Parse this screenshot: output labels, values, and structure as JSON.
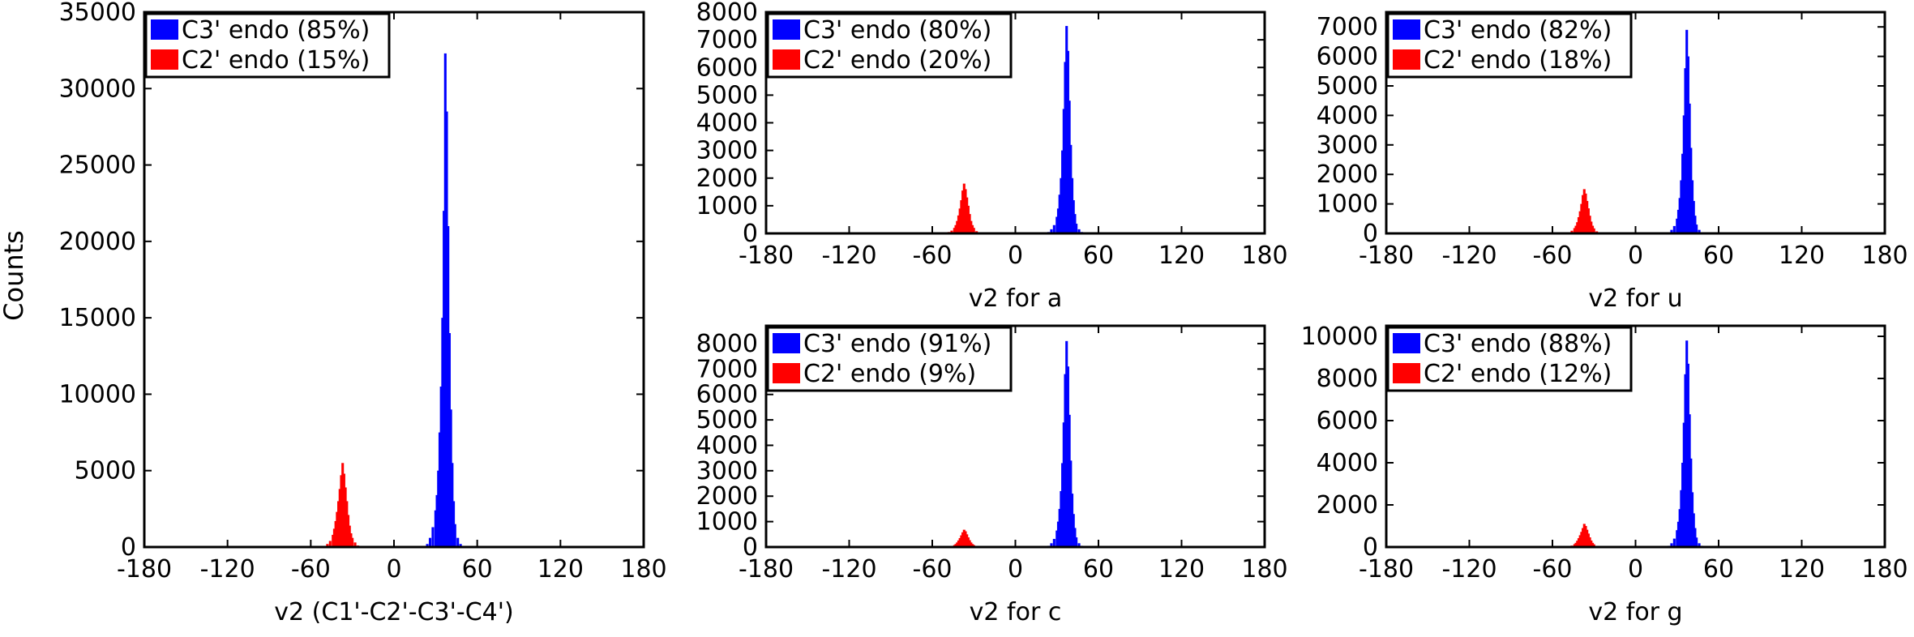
{
  "figure": {
    "ylabel_main": "Counts"
  },
  "chart_data": [
    {
      "type": "histogram",
      "xlabel": "v2 (C1'-C2'-C3'-C4')",
      "xlim": [
        -180,
        180
      ],
      "xticks": [
        -180,
        -120,
        -60,
        0,
        60,
        120,
        180
      ],
      "ylim": [
        0,
        35000
      ],
      "yticks": [
        0,
        5000,
        10000,
        15000,
        20000,
        25000,
        30000,
        35000
      ],
      "legend_position": "top-left",
      "series": [
        {
          "name": "C3' endo (85%)",
          "color": "#0000ff",
          "x": [
            24,
            26,
            28,
            30,
            31,
            32,
            33,
            34,
            35,
            36,
            37,
            38,
            39,
            40,
            41,
            42,
            43,
            44,
            46,
            48
          ],
          "y": [
            200,
            600,
            1300,
            2400,
            3400,
            5000,
            7500,
            10500,
            15000,
            22000,
            32300,
            28500,
            21000,
            14000,
            9000,
            5500,
            3000,
            1500,
            600,
            200
          ]
        },
        {
          "name": "C2' endo (15%)",
          "color": "#ff0000",
          "x": [
            -48,
            -46,
            -44,
            -43,
            -42,
            -41,
            -40,
            -39,
            -38,
            -37,
            -36,
            -35,
            -34,
            -33,
            -32,
            -31,
            -30,
            -28,
            -26
          ],
          "y": [
            200,
            400,
            800,
            1200,
            1700,
            2300,
            3000,
            3800,
            4700,
            5500,
            4800,
            3900,
            3000,
            2100,
            1400,
            900,
            600,
            300,
            100
          ]
        }
      ]
    },
    {
      "type": "histogram",
      "xlabel": "v2 for a",
      "xlim": [
        -180,
        180
      ],
      "xticks": [
        -180,
        -120,
        -60,
        0,
        60,
        120,
        180
      ],
      "ylim": [
        0,
        8000
      ],
      "yticks": [
        0,
        1000,
        2000,
        3000,
        4000,
        5000,
        6000,
        7000,
        8000
      ],
      "legend_position": "top-left",
      "series": [
        {
          "name": "C3' endo (80%)",
          "color": "#0000ff",
          "x": [
            24,
            26,
            28,
            30,
            31,
            32,
            33,
            34,
            35,
            36,
            37,
            38,
            39,
            40,
            41,
            42,
            43,
            44,
            46,
            48
          ],
          "y": [
            50,
            150,
            300,
            600,
            900,
            1400,
            2000,
            3000,
            4500,
            6200,
            7500,
            6600,
            4800,
            3200,
            2000,
            1200,
            700,
            350,
            150,
            50
          ]
        },
        {
          "name": "C2' endo (20%)",
          "color": "#ff0000",
          "x": [
            -48,
            -46,
            -44,
            -43,
            -42,
            -41,
            -40,
            -39,
            -38,
            -37,
            -36,
            -35,
            -34,
            -33,
            -32,
            -31,
            -30,
            -28,
            -26
          ],
          "y": [
            50,
            100,
            200,
            300,
            450,
            650,
            900,
            1200,
            1550,
            1800,
            1600,
            1300,
            1000,
            700,
            450,
            300,
            200,
            80,
            30
          ]
        }
      ]
    },
    {
      "type": "histogram",
      "xlabel": "v2 for u",
      "xlim": [
        -180,
        180
      ],
      "xticks": [
        -180,
        -120,
        -60,
        0,
        60,
        120,
        180
      ],
      "ylim": [
        0,
        7500
      ],
      "yticks": [
        0,
        1000,
        2000,
        3000,
        4000,
        5000,
        6000,
        7000
      ],
      "legend_position": "top-left",
      "series": [
        {
          "name": "C3' endo (82%)",
          "color": "#0000ff",
          "x": [
            24,
            26,
            28,
            30,
            31,
            32,
            33,
            34,
            35,
            36,
            37,
            38,
            39,
            40,
            41,
            42,
            43,
            44,
            46,
            48
          ],
          "y": [
            40,
            120,
            250,
            500,
            800,
            1200,
            1800,
            2700,
            4000,
            5600,
            6900,
            6000,
            4400,
            2900,
            1800,
            1100,
            600,
            300,
            120,
            40
          ]
        },
        {
          "name": "C2' endo (18%)",
          "color": "#ff0000",
          "x": [
            -48,
            -46,
            -44,
            -43,
            -42,
            -41,
            -40,
            -39,
            -38,
            -37,
            -36,
            -35,
            -34,
            -33,
            -32,
            -31,
            -30,
            -28,
            -26
          ],
          "y": [
            40,
            90,
            180,
            260,
            380,
            550,
            750,
            1000,
            1300,
            1500,
            1350,
            1100,
            850,
            600,
            400,
            260,
            170,
            70,
            30
          ]
        }
      ]
    },
    {
      "type": "histogram",
      "xlabel": "v2 for c",
      "xlim": [
        -180,
        180
      ],
      "xticks": [
        -180,
        -120,
        -60,
        0,
        60,
        120,
        180
      ],
      "ylim": [
        0,
        8700
      ],
      "yticks": [
        0,
        1000,
        2000,
        3000,
        4000,
        5000,
        6000,
        7000,
        8000
      ],
      "legend_position": "top-left",
      "series": [
        {
          "name": "C3' endo (91%)",
          "color": "#0000ff",
          "x": [
            24,
            26,
            28,
            30,
            31,
            32,
            33,
            34,
            35,
            36,
            37,
            38,
            39,
            40,
            41,
            42,
            43,
            44,
            46,
            48
          ],
          "y": [
            50,
            150,
            320,
            650,
            1000,
            1500,
            2200,
            3300,
            4900,
            6800,
            8100,
            7100,
            5200,
            3400,
            2100,
            1300,
            750,
            380,
            150,
            50
          ]
        },
        {
          "name": "C2' endo (9%)",
          "color": "#ff0000",
          "x": [
            -48,
            -46,
            -44,
            -43,
            -42,
            -41,
            -40,
            -39,
            -38,
            -37,
            -36,
            -35,
            -34,
            -33,
            -32,
            -31,
            -30,
            -28,
            -26
          ],
          "y": [
            20,
            40,
            80,
            120,
            180,
            260,
            350,
            460,
            580,
            680,
            620,
            500,
            380,
            270,
            180,
            120,
            80,
            30,
            10
          ]
        }
      ]
    },
    {
      "type": "histogram",
      "xlabel": "v2 for g",
      "xlim": [
        -180,
        180
      ],
      "xticks": [
        -180,
        -120,
        -60,
        0,
        60,
        120,
        180
      ],
      "ylim": [
        0,
        10500
      ],
      "yticks": [
        0,
        2000,
        4000,
        6000,
        8000,
        10000
      ],
      "legend_position": "top-left",
      "series": [
        {
          "name": "C3' endo (88%)",
          "color": "#0000ff",
          "x": [
            24,
            26,
            28,
            30,
            31,
            32,
            33,
            34,
            35,
            36,
            37,
            38,
            39,
            40,
            41,
            42,
            43,
            44,
            46,
            48
          ],
          "y": [
            60,
            180,
            400,
            800,
            1200,
            1800,
            2700,
            4000,
            5900,
            8200,
            9800,
            8700,
            6300,
            4200,
            2600,
            1600,
            900,
            450,
            180,
            60
          ]
        },
        {
          "name": "C2' endo (12%)",
          "color": "#ff0000",
          "x": [
            -48,
            -46,
            -44,
            -43,
            -42,
            -41,
            -40,
            -39,
            -38,
            -37,
            -36,
            -35,
            -34,
            -33,
            -32,
            -31,
            -30,
            -28,
            -26
          ],
          "y": [
            30,
            70,
            140,
            200,
            300,
            420,
            560,
            720,
            900,
            1100,
            1000,
            820,
            640,
            460,
            310,
            200,
            130,
            50,
            20
          ]
        }
      ]
    }
  ]
}
